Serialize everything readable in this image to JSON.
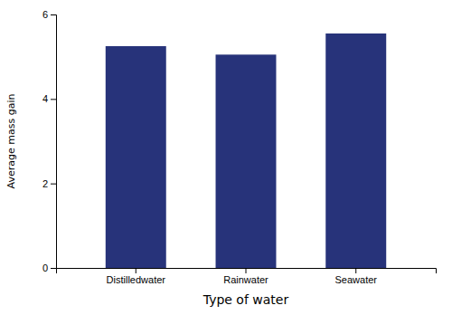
{
  "chart_data": {
    "type": "bar",
    "categories": [
      "Distilledwater",
      "Rainwater",
      "Seawater"
    ],
    "values": [
      5.25,
      5.05,
      5.55
    ],
    "color": "#27337a",
    "xlabel": "Type of water",
    "ylabel": "Average mass gain",
    "ylim": [
      0,
      6
    ],
    "yticks": [
      0,
      2,
      4,
      6
    ],
    "grid": false
  }
}
